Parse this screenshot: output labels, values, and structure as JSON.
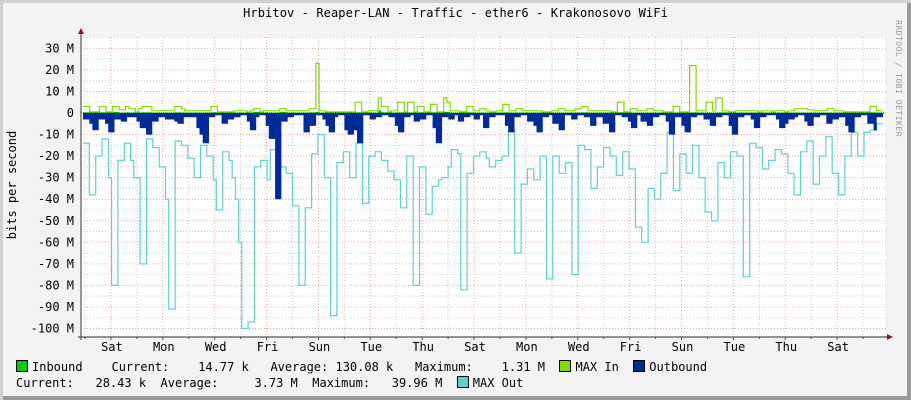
{
  "title": "Hrbitov - Reaper-LAN - Traffic - ether6 - Krakonosovo WiFi",
  "watermark": "RRDTOOL / TOBI OETIKER",
  "colors": {
    "inbound": "#00cc00",
    "max_in": "#7fdd00",
    "outbound": "#002a97",
    "max_out": "#5fd0d0",
    "grid_major": "#e7a0a0",
    "grid_minor": "#c8c8c8",
    "axis": "#555555",
    "arrow": "#8b1a1a"
  },
  "legend": {
    "row1": {
      "inbound_label": "Inbound",
      "current_label": "Current:",
      "current_value": "14.77 k",
      "average_label": "Average:",
      "average_value": "130.08 k",
      "maximum_label": "Maximum:",
      "maximum_value": "1.31 M",
      "max_in_label": "MAX In",
      "outbound_label": "Outbound"
    },
    "row2": {
      "current_label": "Current:",
      "current_value": "28.43 k",
      "average_label": "Average:",
      "average_value": "3.73 M",
      "maximum_label": "Maximum:",
      "maximum_value": "39.96 M",
      "max_out_label": "MAX Out"
    }
  },
  "chart_data": {
    "type": "area",
    "title": "Hrbitov - Reaper-LAN - Traffic - ether6 - Krakonosovo WiFi",
    "xlabel": "",
    "ylabel": "bits per second",
    "ylim": [
      -105,
      35
    ],
    "y_unit": "M",
    "y_ticks": [
      30,
      20,
      10,
      0,
      -10,
      -20,
      -30,
      -40,
      -50,
      -60,
      -70,
      -80,
      -90,
      -100
    ],
    "y_tick_labels": [
      "30 M",
      "20 M",
      "10 M",
      "0",
      "-10 M",
      "-20 M",
      "-30 M",
      "-40 M",
      "-50 M",
      "-60 M",
      "-70 M",
      "-80 M",
      "-90 M",
      "-100 M"
    ],
    "x_tick_labels": [
      "Sat",
      "Mon",
      "Wed",
      "Fri",
      "Sun",
      "Tue",
      "Thu",
      "Sat",
      "Mon",
      "Wed",
      "Fri",
      "Sun",
      "Tue",
      "Thu",
      "Sat"
    ],
    "x_days": 31,
    "grid": true,
    "legend_position": "bottom",
    "note": "Outbound and MAX Out plotted as negative values (mirrored below zero). Values in Mbit/s, sampled ~every 3.7 hours across 31 days.",
    "series": [
      {
        "name": "MAX In",
        "style": "line",
        "values": [
          3,
          3,
          0.5,
          0.5,
          0.5,
          3,
          3,
          0.5,
          0.5,
          3,
          3,
          1.5,
          1.5,
          3,
          2,
          2,
          0.5,
          2,
          3,
          3,
          3,
          1,
          1,
          1,
          1,
          1,
          1,
          1,
          3,
          3,
          2,
          1,
          1,
          1,
          1,
          1,
          1,
          1,
          1,
          3,
          3,
          0.5,
          0.5,
          0.5,
          0.5,
          0.5,
          1,
          1,
          1,
          1,
          0.5,
          1,
          2,
          2,
          0.5,
          1,
          1,
          1,
          1,
          1,
          2,
          2,
          1,
          1,
          1,
          1,
          1,
          1,
          1,
          2,
          2,
          23,
          1,
          1,
          0.5,
          0.5,
          0.5,
          0.5,
          0.5,
          0.5,
          0.5,
          0.5,
          0.5,
          5,
          5,
          0.5,
          0.5,
          1,
          1,
          1,
          7,
          3,
          3,
          0.5,
          1,
          1,
          5,
          5,
          0.5,
          5,
          5,
          0.5,
          3,
          3,
          0.5,
          0.5,
          4,
          4,
          0.5,
          0.5,
          7,
          5,
          1,
          1,
          1,
          0.5,
          0.5,
          3,
          3,
          1,
          1,
          2,
          2,
          1,
          0.5,
          0.5,
          1,
          1,
          4,
          4,
          1,
          1,
          2,
          2,
          1,
          1,
          1,
          1,
          1,
          1,
          0.5,
          0.5,
          0.5,
          1,
          1,
          2,
          2,
          1,
          1,
          1,
          2,
          2,
          3,
          3,
          1,
          1,
          1,
          1,
          1,
          1,
          1,
          0.5,
          0.5,
          5,
          5,
          0.5,
          0.5,
          2,
          2,
          1,
          1,
          1,
          2,
          2,
          1,
          1,
          1,
          0.5,
          0.5,
          0.5,
          3,
          3,
          0.5,
          0.5,
          0.5,
          22,
          22,
          1,
          1,
          1,
          5,
          5,
          1,
          7,
          7,
          1,
          1,
          0.5,
          0.5,
          1,
          1,
          1,
          1,
          1,
          1,
          1,
          0.5,
          1,
          1,
          1,
          0.5,
          1,
          1,
          1,
          0.5,
          1,
          1,
          2,
          2,
          2,
          2,
          1.5,
          1.5,
          1,
          1,
          1,
          1,
          2,
          2,
          1,
          1,
          1,
          0.5,
          0.5,
          0.5,
          0.5,
          0.5,
          0.5,
          0.5,
          0.5,
          3,
          3,
          1,
          1
        ]
      },
      {
        "name": "Inbound",
        "style": "area",
        "values": [
          0.3,
          0.3,
          0.2,
          0.2,
          0.2,
          0.3,
          0.3,
          0.2,
          0.2,
          0.5,
          0.5,
          0.2,
          0.2,
          0.3,
          0.2,
          0.2,
          0.1,
          0.2,
          0.3,
          0.3,
          0.3,
          0.2,
          0.2,
          0.2,
          0.2,
          0.2,
          0.2,
          0.2,
          0.3,
          0.3,
          0.2,
          0.2,
          0.2,
          0.2,
          0.2,
          0.2,
          0.2,
          0.2,
          0.2,
          0.3,
          0.3,
          0.2,
          0.2,
          0.2,
          0.2,
          0.2,
          0.2,
          0.2,
          0.2,
          0.2,
          0.2,
          0.2,
          0.5,
          0.5,
          0.2,
          0.2,
          0.2,
          0.2,
          0.2,
          0.2,
          0.5,
          0.5,
          0.2,
          0.2,
          0.2,
          0.2,
          0.2,
          0.2,
          0.2,
          0.3,
          0.3,
          0.5,
          0.2,
          0.2,
          0.2,
          0.2,
          0.2,
          0.2,
          0.2,
          0.2,
          0.2,
          0.2,
          0.2,
          0.3,
          0.3,
          0.2,
          0.2,
          0.2,
          0.2,
          0.2,
          1.3,
          0.3,
          0.3,
          0.2,
          0.2,
          0.2,
          0.3,
          0.3,
          0.2,
          0.3,
          0.3,
          0.2,
          0.3,
          0.3,
          0.2,
          0.2,
          0.3,
          0.3,
          0.2,
          0.2,
          0.5,
          0.5,
          0.2,
          0.2,
          0.2,
          0.2,
          0.2,
          0.3,
          0.3,
          0.2,
          0.2,
          0.2,
          0.2,
          0.2,
          0.2,
          0.2,
          0.2,
          0.2,
          0.3,
          0.3,
          0.2,
          0.2,
          0.2,
          0.2,
          0.2,
          0.2,
          0.2,
          0.2,
          0.2,
          0.2,
          0.2,
          0.2,
          0.2,
          0.2,
          0.2,
          0.2,
          0.2,
          0.2,
          0.2,
          0.2,
          0.2,
          0.2,
          0.3,
          0.3,
          0.2,
          0.2,
          0.2,
          0.2,
          0.2,
          0.2,
          0.2,
          0.2,
          0.2,
          0.3,
          0.3,
          0.2,
          0.2,
          0.2,
          0.2,
          0.2,
          0.2,
          0.2,
          0.2,
          0.2,
          0.2,
          0.2,
          0.2,
          0.2,
          0.2,
          0.2,
          0.2,
          0.2,
          0.2,
          0.2,
          0.2,
          0.2,
          0.3,
          0.3,
          0.2,
          0.2,
          0.2,
          0.2,
          0.2,
          0.2,
          0.3,
          0.3,
          0.2,
          0.2,
          0.2,
          0.2,
          0.2,
          0.2,
          0.2,
          0.2,
          0.2,
          0.2,
          0.2,
          0.2,
          0.2,
          0.2,
          0.2,
          0.2,
          0.2,
          0.2,
          0.2,
          0.2,
          0.2,
          0.2,
          0.2,
          0.2,
          0.2,
          0.2,
          0.2,
          0.2,
          0.2,
          0.2,
          0.2,
          0.2,
          0.2,
          0.2,
          0.2,
          0.2,
          0.2,
          0.2,
          0.2,
          0.2,
          0.2,
          0.2,
          0.2,
          0.2,
          0.3,
          0.3,
          0.2,
          0.2
        ]
      },
      {
        "name": "Outbound",
        "style": "area",
        "values": [
          -3,
          -3,
          -5,
          -8,
          -8,
          -3,
          -3,
          -5,
          -9,
          -9,
          -3,
          -3,
          -4,
          -4,
          -2,
          -2,
          -2,
          -4,
          -7,
          -7,
          -10,
          -10,
          -4,
          -4,
          -2,
          -2,
          -3,
          -3,
          -3,
          -4,
          -5,
          -5,
          -2,
          -2,
          -2,
          -2,
          -7,
          -10,
          -14,
          -14,
          -2,
          -2,
          -1,
          -1,
          -5,
          -5,
          -3,
          -3,
          -2,
          -2,
          -1,
          -1,
          -4,
          -8,
          -8,
          -2,
          -1,
          -1,
          -6,
          -12,
          -12,
          -40,
          -40,
          -4,
          -4,
          -2,
          -2,
          -1,
          -1,
          -1,
          -9,
          -9,
          -6,
          -6,
          -1,
          -1,
          -3,
          -6,
          -9,
          -9,
          -2,
          -1,
          -1,
          -8,
          -10,
          -10,
          -8,
          -14,
          -14,
          -1,
          -1,
          -3,
          -3,
          -2,
          -2,
          -1,
          -1,
          -2,
          -2,
          -6,
          -9,
          -9,
          -2,
          -2,
          -1,
          -4,
          -4,
          -3,
          -3,
          -1,
          -1,
          -7,
          -14,
          -14,
          -2,
          -2,
          -3,
          -3,
          -1,
          -4,
          -4,
          -2,
          -2,
          -1,
          -3,
          -3,
          -1,
          -7,
          -7,
          -2,
          -2,
          -1,
          -1,
          -1,
          -6,
          -9,
          -9,
          -2,
          -2,
          -1,
          -1,
          -4,
          -4,
          -6,
          -9,
          -9,
          -2,
          -2,
          -1,
          -5,
          -5,
          -8,
          -8,
          -1,
          -1,
          -3,
          -3,
          -1,
          -1,
          -2,
          -2,
          -6,
          -6,
          -2,
          -2,
          -5,
          -5,
          -9,
          -9,
          -1,
          -1,
          -2,
          -2,
          -4,
          -7,
          -7,
          -1,
          -4,
          -4,
          -6,
          -6,
          -2,
          -2,
          -1,
          -1,
          -4,
          -10,
          -10,
          -2,
          -2,
          -6,
          -9,
          -9,
          -2,
          -2,
          -1,
          -1,
          -3,
          -3,
          -6,
          -6,
          -2,
          -2,
          -1,
          -1,
          -6,
          -10,
          -10,
          -2,
          -2,
          -1,
          -1,
          -3,
          -7,
          -7,
          -2,
          -2,
          -1,
          -1,
          -1,
          -3,
          -7,
          -7,
          -5,
          -3,
          -3,
          -2,
          -1,
          -1,
          -4,
          -6,
          -6,
          -2,
          -2,
          -1,
          -1,
          -5,
          -5,
          -3,
          -3,
          -2,
          -2,
          -6,
          -9,
          -9,
          -2,
          -2,
          -1,
          -1,
          -5,
          -5,
          -8,
          -2,
          -2
        ]
      },
      {
        "name": "MAX Out",
        "style": "line",
        "values": [
          -14,
          -14,
          -38,
          -38,
          -20,
          -20,
          -12,
          -12,
          -30,
          -80,
          -80,
          -22,
          -22,
          -14,
          -14,
          -22,
          -30,
          -30,
          -70,
          -70,
          -12,
          -12,
          -16,
          -16,
          -25,
          -25,
          -40,
          -91,
          -91,
          -13,
          -13,
          -15,
          -15,
          -21,
          -21,
          -30,
          -30,
          -15,
          -15,
          -20,
          -20,
          -31,
          -45,
          -45,
          -18,
          -18,
          -22,
          -30,
          -40,
          -60,
          -100,
          -100,
          -97,
          -97,
          -25,
          -25,
          -22,
          -22,
          -31,
          -17,
          -17,
          -19,
          -25,
          -25,
          -28,
          -28,
          -43,
          -43,
          -80,
          -80,
          -44,
          -44,
          -19,
          -19,
          -10,
          -10,
          -30,
          -30,
          -94,
          -94,
          -23,
          -23,
          -18,
          -18,
          -30,
          -30,
          -14,
          -14,
          -42,
          -42,
          -20,
          -20,
          -18,
          -18,
          -22,
          -22,
          -27,
          -27,
          -31,
          -31,
          -44,
          -44,
          -20,
          -20,
          -80,
          -80,
          -25,
          -25,
          -47,
          -47,
          -34,
          -34,
          -31,
          -30,
          -30,
          -25,
          -17,
          -17,
          -19,
          -82,
          -82,
          -28,
          -28,
          -20,
          -20,
          -18,
          -18,
          -21,
          -25,
          -25,
          -22,
          -22,
          -20,
          -20,
          -8,
          -8,
          -65,
          -65,
          -33,
          -33,
          -26,
          -26,
          -31,
          -31,
          -20,
          -20,
          -77,
          -77,
          -20,
          -20,
          -28,
          -28,
          -23,
          -23,
          -75,
          -75,
          -15,
          -15,
          -17,
          -17,
          -35,
          -35,
          -25,
          -25,
          -16,
          -16,
          -20,
          -20,
          -29,
          -29,
          -18,
          -18,
          -26,
          -26,
          -53,
          -53,
          -60,
          -60,
          -35,
          -35,
          -40,
          -40,
          -28,
          -28,
          -9,
          -9,
          -36,
          -36,
          -19,
          -19,
          -28,
          -28,
          -15,
          -15,
          -30,
          -30,
          -46,
          -46,
          -50,
          -50,
          -23,
          -23,
          -30,
          -30,
          -18,
          -18,
          -20,
          -20,
          -76,
          -76,
          -14,
          -14,
          -16,
          -16,
          -26,
          -26,
          -22,
          -22,
          -17,
          -17,
          -19,
          -19,
          -28,
          -28,
          -38,
          -38,
          -18,
          -18,
          -13,
          -13,
          -33,
          -33,
          -20,
          -20,
          -11,
          -11,
          -28,
          -28,
          -38,
          -38,
          -20,
          -20,
          -9,
          -9,
          -20,
          -20,
          -9,
          -9,
          -8,
          -8,
          -5,
          -5
        ]
      }
    ]
  }
}
